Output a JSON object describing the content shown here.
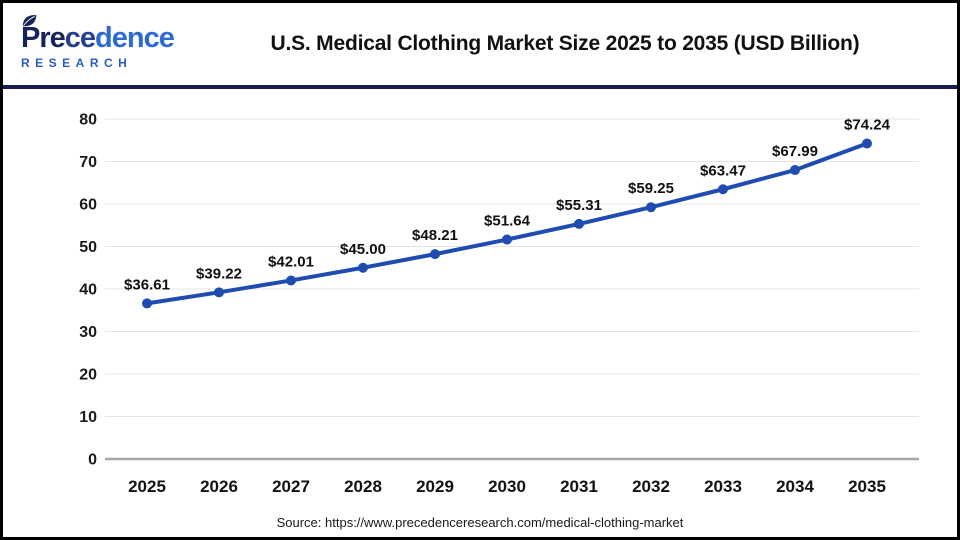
{
  "header": {
    "logo": {
      "word_part1": "Pre",
      "word_part2": "ce",
      "word_part3": "dence",
      "subtitle": "RESEARCH"
    },
    "title": "U.S. Medical Clothing Market Size 2025 to 2035 (USD Billion)"
  },
  "chart_data": {
    "type": "line",
    "title": "U.S. Medical Clothing Market Size 2025 to 2035 (USD Billion)",
    "categories": [
      "2025",
      "2026",
      "2027",
      "2028",
      "2029",
      "2030",
      "2031",
      "2032",
      "2033",
      "2034",
      "2035"
    ],
    "values": [
      36.61,
      39.22,
      42.01,
      45.0,
      48.21,
      51.64,
      55.31,
      59.25,
      63.47,
      67.99,
      74.24
    ],
    "value_labels": [
      "$36.61",
      "$39.22",
      "$42.01",
      "$45.00",
      "$48.21",
      "$51.64",
      "$55.31",
      "$59.25",
      "$63.47",
      "$67.99",
      "$74.24"
    ],
    "ylim": [
      0,
      80
    ],
    "ytick_step": 10,
    "ytick_labels": [
      "0",
      "10",
      "20",
      "30",
      "40",
      "50",
      "60",
      "70",
      "80"
    ],
    "grid": true,
    "legend": "none",
    "line_color": "#1e4cb0",
    "marker": "circle"
  },
  "footer": {
    "source": "Source: https://www.precedenceresearch.com/medical-clothing-market"
  },
  "colors": {
    "accent_line": "#1e4cb0",
    "gridline": "#e4e4e4",
    "zero_axis": "#a6a6a6",
    "divider_navy": "#1a1a4e",
    "frame_border": "#000000",
    "text_dark": "#1a1a1a",
    "logo_navy": "#182459",
    "logo_blue": "#2f6ad0"
  }
}
